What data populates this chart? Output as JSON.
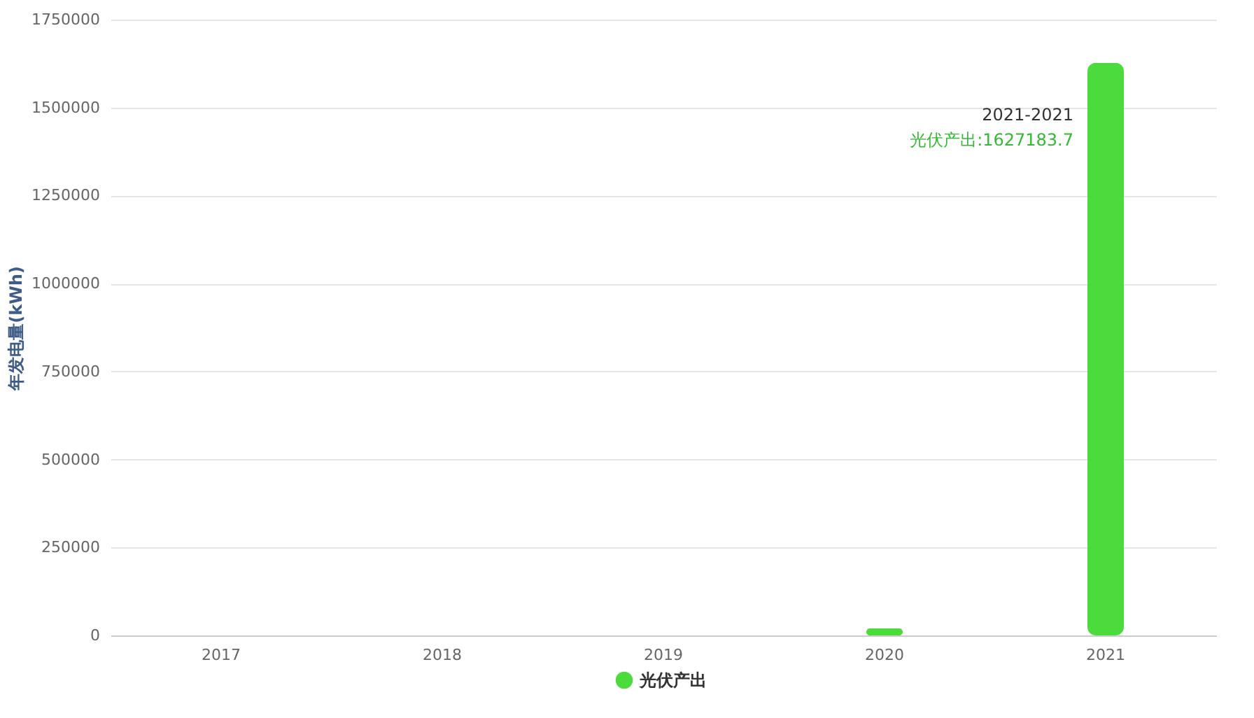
{
  "chart_data": {
    "type": "bar",
    "ylabel": "年发电量(kWh)",
    "categories": [
      "2017",
      "2018",
      "2019",
      "2020",
      "2021"
    ],
    "series": [
      {
        "name": "光伏产出",
        "color": "#4cdb3c",
        "values": [
          0,
          0,
          0,
          20000,
          1627183.7
        ]
      }
    ],
    "ylim": [
      0,
      1750000
    ],
    "yticks": [
      0,
      250000,
      500000,
      750000,
      1000000,
      1250000,
      1500000,
      1750000
    ],
    "grid": "y",
    "legend": "bottom",
    "annotations": [
      "2021-2021",
      "光伏产出:1627183.7"
    ]
  }
}
